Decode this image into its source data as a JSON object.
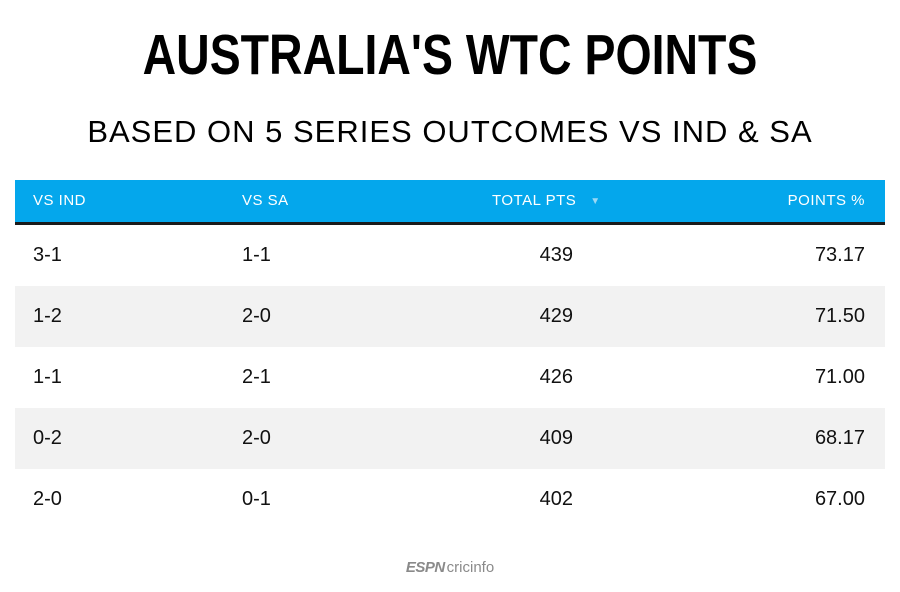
{
  "title": "AUSTRALIA'S WTC POINTS",
  "subtitle": "BASED ON 5 SERIES OUTCOMES VS IND & SA",
  "table": {
    "columns": [
      "VS IND",
      "VS SA",
      "TOTAL PTS",
      "POINTS %"
    ],
    "sort_icon": "▼",
    "rows": [
      {
        "vs_ind": "3-1",
        "vs_sa": "1-1",
        "total_pts": "439",
        "points_pct": "73.17"
      },
      {
        "vs_ind": "1-2",
        "vs_sa": "2-0",
        "total_pts": "429",
        "points_pct": "71.50"
      },
      {
        "vs_ind": "1-1",
        "vs_sa": "2-1",
        "total_pts": "426",
        "points_pct": "71.00"
      },
      {
        "vs_ind": "0-2",
        "vs_sa": "2-0",
        "total_pts": "409",
        "points_pct": "68.17"
      },
      {
        "vs_ind": "2-0",
        "vs_sa": "0-1",
        "total_pts": "402",
        "points_pct": "67.00"
      }
    ]
  },
  "logo": {
    "espn": "ESPN",
    "brand": "cricinfo"
  },
  "colors": {
    "header_bg": "#04a7ec",
    "header_text": "#ffffff",
    "alt_row_bg": "#f2f2f2",
    "header_border": "#1a1a1a"
  },
  "chart_data": {
    "type": "table",
    "title": "AUSTRALIA'S WTC POINTS",
    "subtitle": "BASED ON 5 SERIES OUTCOMES VS IND & SA",
    "columns": [
      "VS IND",
      "VS SA",
      "TOTAL PTS",
      "POINTS %"
    ],
    "rows": [
      [
        "3-1",
        "1-1",
        439,
        73.17
      ],
      [
        "1-2",
        "2-0",
        429,
        71.5
      ],
      [
        "1-1",
        "2-1",
        426,
        71.0
      ],
      [
        "0-2",
        "2-0",
        409,
        68.17
      ],
      [
        "2-0",
        "0-1",
        402,
        67.0
      ]
    ]
  }
}
